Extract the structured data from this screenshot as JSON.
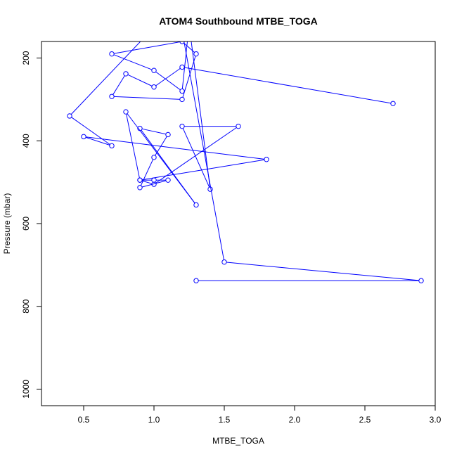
{
  "chart_data": {
    "type": "scatter",
    "title": "ATOM4 Southbound MTBE_TOGA",
    "xlabel": "MTBE_TOGA",
    "ylabel": "Pressure (mbar)",
    "xlim": [
      0.2,
      3.0
    ],
    "ylim": [
      160,
      1040
    ],
    "y_inverted": true,
    "xticks": [
      0.5,
      1.0,
      1.5,
      2.0,
      2.5,
      3.0
    ],
    "xtick_labels": [
      "0.5",
      "1.0",
      "1.5",
      "2.0",
      "2.5",
      "3.0"
    ],
    "yticks": [
      200,
      400,
      600,
      800,
      1000
    ],
    "ytick_labels": [
      "200",
      "400",
      "600",
      "800",
      "1000"
    ],
    "grid": false,
    "series": [
      {
        "color": "#0000ff",
        "marker": "open-circle",
        "line": true,
        "x": [
          1.3,
          2.9,
          1.5,
          1.2,
          1.1,
          0.4,
          0.7,
          0.5,
          1.8,
          0.9,
          1.0,
          1.1,
          0.9,
          1.0,
          1.1,
          0.9,
          1.3,
          0.8,
          0.9,
          1.0,
          1.6,
          1.2,
          1.4,
          1.25,
          1.2,
          1.0,
          0.7,
          1.2,
          1.3,
          1.2,
          0.7,
          0.8,
          1.0,
          1.2,
          2.7
        ],
        "y": [
          738,
          738,
          693,
          135,
          90,
          340,
          412,
          390,
          445,
          495,
          495,
          495,
          513,
          440,
          385,
          370,
          555,
          330,
          495,
          505,
          365,
          365,
          517,
          120,
          280,
          230,
          190,
          160,
          190,
          300,
          293,
          238,
          270,
          222,
          310
        ]
      }
    ]
  }
}
